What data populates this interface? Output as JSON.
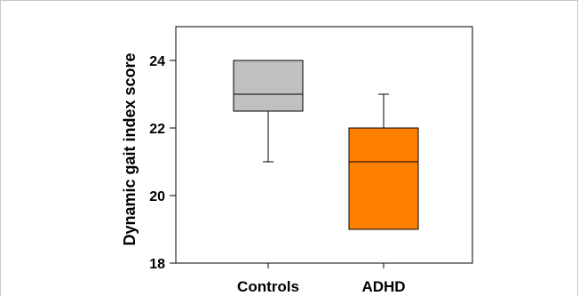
{
  "chart_data": {
    "type": "box",
    "ylabel": "Dynamic gait index score",
    "xlabel": "",
    "ylim": [
      18,
      25
    ],
    "yticks": [
      18,
      20,
      22,
      24
    ],
    "categories": [
      "Controls",
      "ADHD"
    ],
    "boxes": [
      {
        "category": "Controls",
        "whisker_low": 21,
        "q1": 22.5,
        "median": 23,
        "q3": 24,
        "whisker_high": 24,
        "color": "#c0c0c0"
      },
      {
        "category": "ADHD",
        "whisker_low": 19,
        "q1": 19,
        "median": 21,
        "q3": 22,
        "whisker_high": 23,
        "color": "#ff8000"
      }
    ],
    "grid": false,
    "legend": "none"
  }
}
